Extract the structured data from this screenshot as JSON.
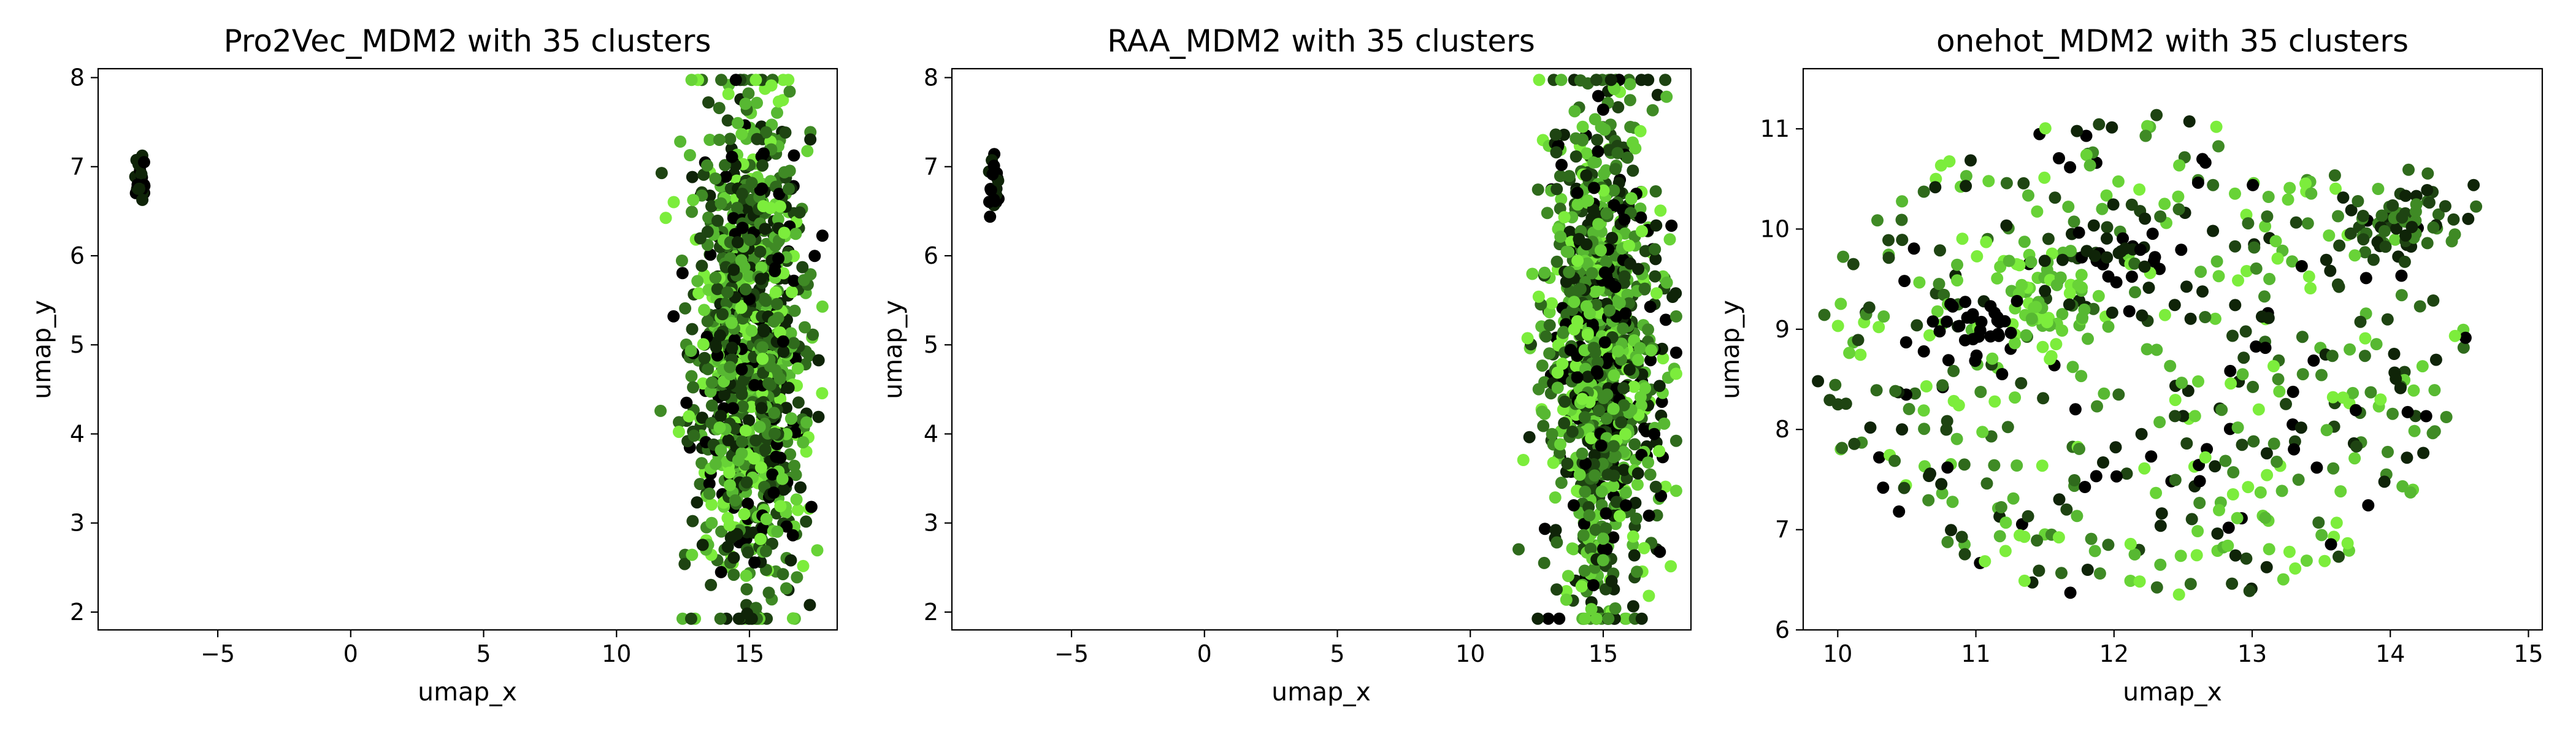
{
  "chart_data": [
    {
      "type": "scatter",
      "title": "Pro2Vec_MDM2 with 35 clusters",
      "xlabel": "umap_x",
      "ylabel": "umap_y",
      "xlim": [
        -9.5,
        18.3
      ],
      "ylim": [
        1.8,
        8.1
      ],
      "xticks": [
        -5,
        0,
        5,
        10,
        15
      ],
      "yticks": [
        2,
        3,
        4,
        5,
        6,
        7,
        8
      ],
      "grid": false,
      "legend": "none",
      "palette": [
        "#000000",
        "#0f2408",
        "#1e4412",
        "#2f6a1c",
        "#3f8a25",
        "#57b832",
        "#68d337",
        "#7ced3c"
      ],
      "point_groups": [
        {
          "kind": "blob",
          "cx": -7.9,
          "cy": 6.78,
          "sx": 0.12,
          "sy": 0.14,
          "n": 22,
          "colors": [
            0,
            0,
            1
          ]
        },
        {
          "kind": "blob",
          "cx": 15.0,
          "cy": 4.9,
          "sx": 1.05,
          "sy": 1.45,
          "n": 1100,
          "colors": [
            0,
            1,
            2,
            3,
            4,
            5,
            6,
            7
          ]
        }
      ]
    },
    {
      "type": "scatter",
      "title": "RAA_MDM2 with 35 clusters",
      "xlabel": "umap_x",
      "ylabel": "umap_y",
      "xlim": [
        -9.5,
        18.3
      ],
      "ylim": [
        1.8,
        8.1
      ],
      "xticks": [
        -5,
        0,
        5,
        10,
        15
      ],
      "yticks": [
        2,
        3,
        4,
        5,
        6,
        7,
        8
      ],
      "grid": false,
      "legend": "none",
      "palette": [
        "#000000",
        "#0f2408",
        "#1e4412",
        "#2f6a1c",
        "#3f8a25",
        "#57b832",
        "#68d337",
        "#7ced3c"
      ],
      "point_groups": [
        {
          "kind": "blob",
          "cx": -7.9,
          "cy": 6.78,
          "sx": 0.12,
          "sy": 0.14,
          "n": 22,
          "colors": [
            0,
            0,
            1
          ]
        },
        {
          "kind": "blob",
          "cx": 15.0,
          "cy": 4.9,
          "sx": 1.05,
          "sy": 1.45,
          "n": 1100,
          "colors": [
            0,
            1,
            2,
            3,
            4,
            5,
            6,
            7
          ]
        }
      ]
    },
    {
      "type": "scatter",
      "title": "onehot_MDM2 with 35 clusters",
      "xlabel": "umap_x",
      "ylabel": "umap_y",
      "xlim": [
        9.75,
        15.1
      ],
      "ylim": [
        6.0,
        11.6
      ],
      "xticks": [
        10,
        11,
        12,
        13,
        14,
        15
      ],
      "yticks": [
        6,
        7,
        8,
        9,
        10,
        11
      ],
      "grid": false,
      "legend": "none",
      "palette": [
        "#000000",
        "#0f2408",
        "#1e4412",
        "#2f6a1c",
        "#3f8a25",
        "#57b832",
        "#68d337",
        "#7ced3c"
      ],
      "point_groups": [
        {
          "kind": "uniform-ellipse",
          "cx": 12.2,
          "cy": 8.7,
          "rx": 2.4,
          "ry": 2.45,
          "n": 520,
          "colors": [
            0,
            1,
            2,
            3,
            4,
            5,
            6,
            7
          ]
        },
        {
          "kind": "blob",
          "cx": 11.5,
          "cy": 9.3,
          "sx": 0.2,
          "sy": 0.28,
          "n": 60,
          "colors": [
            5,
            6,
            7
          ]
        },
        {
          "kind": "blob",
          "cx": 11.0,
          "cy": 9.0,
          "sx": 0.16,
          "sy": 0.16,
          "n": 30,
          "colors": [
            0
          ]
        },
        {
          "kind": "blob",
          "cx": 12.0,
          "cy": 9.7,
          "sx": 0.25,
          "sy": 0.2,
          "n": 30,
          "colors": [
            0,
            1
          ]
        },
        {
          "kind": "blob",
          "cx": 14.15,
          "cy": 10.05,
          "sx": 0.28,
          "sy": 0.2,
          "n": 55,
          "colors": [
            1,
            2,
            3,
            4
          ]
        }
      ]
    }
  ]
}
